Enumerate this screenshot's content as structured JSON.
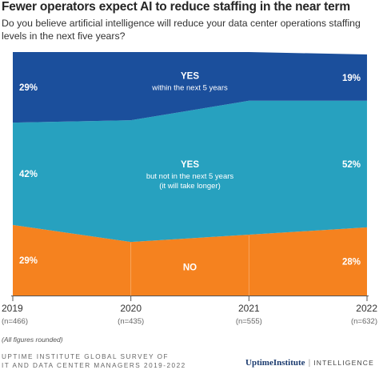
{
  "header": {
    "title": "Fewer operators expect AI to reduce staffing in the near term",
    "question": "Do you believe artificial intelligence will reduce your data center operations staffing levels in the next five years?"
  },
  "chart_data": {
    "type": "area",
    "stacked": true,
    "normalized_percent": true,
    "x": [
      "2019",
      "2020",
      "2021",
      "2022"
    ],
    "x_sublabels": [
      "(n=466)",
      "(n=435)",
      "(n=555)",
      "(n=632)"
    ],
    "series": [
      {
        "name": "NO",
        "label_lines": [
          "NO"
        ],
        "color": "#f5821f",
        "values": [
          29,
          22,
          25,
          28
        ],
        "start_label": "29%",
        "end_label": "28%"
      },
      {
        "name": "YES but not in the next 5 years",
        "label_lines": [
          "YES",
          "but not in the next 5 years",
          "(it will take longer)"
        ],
        "color": "#27a1bf",
        "values": [
          42,
          50,
          55,
          52
        ],
        "start_label": "42%",
        "end_label": "52%"
      },
      {
        "name": "YES within the next 5 years",
        "label_lines": [
          "YES",
          "within the next 5 years"
        ],
        "color": "#1b4f9c",
        "values": [
          29,
          28,
          20,
          19
        ],
        "start_label": "29%",
        "end_label": "19%"
      }
    ],
    "ylim": [
      0,
      100
    ],
    "grid": false,
    "legend": "none"
  },
  "footer": {
    "note": "(All figures rounded)",
    "source_line1": "UPTIME INSTITUTE GLOBAL SURVEY OF",
    "source_line2": "IT AND DATA CENTER MANAGERS 2019-2022",
    "brand_org": "UptimeInstitute",
    "brand_sep": "|",
    "brand_unit": "INTELLIGENCE"
  }
}
